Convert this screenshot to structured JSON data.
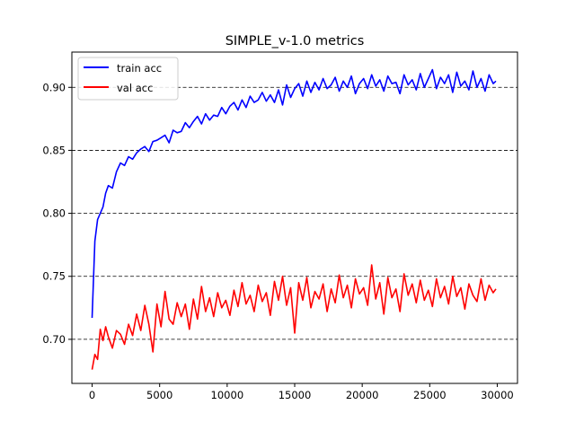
{
  "chart_data": {
    "type": "line",
    "title": "SIMPLE_v-1.0 metrics",
    "xlabel": "",
    "ylabel": "",
    "xlim": [
      -1500,
      31500
    ],
    "ylim": [
      0.665,
      0.928
    ],
    "xticks": [
      0,
      5000,
      10000,
      15000,
      20000,
      25000,
      30000
    ],
    "xtick_labels": [
      "0",
      "5000",
      "10000",
      "15000",
      "20000",
      "25000",
      "30000"
    ],
    "yticks": [
      0.7,
      0.75,
      0.8,
      0.85,
      0.9
    ],
    "ytick_labels": [
      "0.70",
      "0.75",
      "0.80",
      "0.85",
      "0.90"
    ],
    "grid": "horizontal dashed",
    "legend_position": "top-left",
    "colors": {
      "train": "#0000ff",
      "val": "#ff0000",
      "grid": "#000000"
    },
    "series": [
      {
        "name": "train acc",
        "color": "#0000ff",
        "x": [
          0,
          200,
          400,
          600,
          800,
          1000,
          1200,
          1500,
          1800,
          2100,
          2400,
          2700,
          3000,
          3300,
          3600,
          3900,
          4200,
          4500,
          4800,
          5100,
          5400,
          5700,
          6000,
          6300,
          6600,
          6900,
          7200,
          7500,
          7800,
          8100,
          8400,
          8700,
          9000,
          9300,
          9600,
          9900,
          10200,
          10500,
          10800,
          11100,
          11400,
          11700,
          12000,
          12300,
          12600,
          12900,
          13200,
          13500,
          13800,
          14100,
          14400,
          14700,
          15000,
          15300,
          15600,
          15900,
          16200,
          16500,
          16800,
          17100,
          17400,
          17700,
          18000,
          18300,
          18600,
          18900,
          19200,
          19500,
          19800,
          20100,
          20400,
          20700,
          21000,
          21300,
          21600,
          21900,
          22200,
          22500,
          22800,
          23100,
          23400,
          23700,
          24000,
          24300,
          24600,
          24900,
          25200,
          25500,
          25800,
          26100,
          26400,
          26700,
          27000,
          27300,
          27600,
          27900,
          28200,
          28500,
          28800,
          29100,
          29400,
          29700,
          29900
        ],
        "values": [
          0.717,
          0.778,
          0.795,
          0.8,
          0.805,
          0.816,
          0.822,
          0.82,
          0.833,
          0.84,
          0.838,
          0.845,
          0.843,
          0.848,
          0.851,
          0.853,
          0.849,
          0.857,
          0.858,
          0.86,
          0.862,
          0.856,
          0.866,
          0.864,
          0.865,
          0.872,
          0.868,
          0.873,
          0.877,
          0.871,
          0.879,
          0.874,
          0.878,
          0.877,
          0.884,
          0.879,
          0.885,
          0.888,
          0.882,
          0.89,
          0.884,
          0.893,
          0.888,
          0.89,
          0.896,
          0.889,
          0.894,
          0.888,
          0.898,
          0.886,
          0.902,
          0.892,
          0.899,
          0.903,
          0.893,
          0.905,
          0.896,
          0.904,
          0.898,
          0.907,
          0.899,
          0.902,
          0.908,
          0.897,
          0.905,
          0.9,
          0.909,
          0.895,
          0.903,
          0.907,
          0.899,
          0.91,
          0.901,
          0.906,
          0.897,
          0.909,
          0.903,
          0.904,
          0.895,
          0.91,
          0.902,
          0.906,
          0.898,
          0.911,
          0.9,
          0.907,
          0.914,
          0.899,
          0.908,
          0.903,
          0.91,
          0.896,
          0.912,
          0.901,
          0.905,
          0.898,
          0.913,
          0.9,
          0.907,
          0.897,
          0.91,
          0.903,
          0.905
        ]
      },
      {
        "name": "val acc",
        "color": "#ff0000",
        "x": [
          0,
          200,
          400,
          600,
          800,
          1000,
          1200,
          1500,
          1800,
          2100,
          2400,
          2700,
          3000,
          3300,
          3600,
          3900,
          4200,
          4500,
          4800,
          5100,
          5400,
          5700,
          6000,
          6300,
          6600,
          6900,
          7200,
          7500,
          7800,
          8100,
          8400,
          8700,
          9000,
          9300,
          9600,
          9900,
          10200,
          10500,
          10800,
          11100,
          11400,
          11700,
          12000,
          12300,
          12600,
          12900,
          13200,
          13500,
          13800,
          14100,
          14400,
          14700,
          15000,
          15300,
          15600,
          15900,
          16200,
          16500,
          16800,
          17100,
          17400,
          17700,
          18000,
          18300,
          18600,
          18900,
          19200,
          19500,
          19800,
          20100,
          20400,
          20700,
          21000,
          21300,
          21600,
          21900,
          22200,
          22500,
          22800,
          23100,
          23400,
          23700,
          24000,
          24300,
          24600,
          24900,
          25200,
          25500,
          25800,
          26100,
          26400,
          26700,
          27000,
          27300,
          27600,
          27900,
          28200,
          28500,
          28800,
          29100,
          29400,
          29700,
          29900
        ],
        "values": [
          0.676,
          0.688,
          0.684,
          0.708,
          0.699,
          0.71,
          0.702,
          0.693,
          0.707,
          0.704,
          0.696,
          0.712,
          0.703,
          0.72,
          0.707,
          0.727,
          0.712,
          0.69,
          0.728,
          0.71,
          0.738,
          0.716,
          0.712,
          0.729,
          0.718,
          0.728,
          0.708,
          0.732,
          0.716,
          0.742,
          0.722,
          0.733,
          0.718,
          0.737,
          0.725,
          0.731,
          0.719,
          0.739,
          0.726,
          0.745,
          0.728,
          0.735,
          0.722,
          0.743,
          0.73,
          0.737,
          0.719,
          0.746,
          0.731,
          0.75,
          0.727,
          0.741,
          0.705,
          0.745,
          0.731,
          0.749,
          0.725,
          0.738,
          0.732,
          0.744,
          0.722,
          0.74,
          0.729,
          0.751,
          0.733,
          0.743,
          0.725,
          0.748,
          0.736,
          0.741,
          0.727,
          0.759,
          0.732,
          0.745,
          0.72,
          0.749,
          0.733,
          0.74,
          0.722,
          0.752,
          0.735,
          0.744,
          0.729,
          0.747,
          0.731,
          0.739,
          0.726,
          0.748,
          0.733,
          0.742,
          0.728,
          0.75,
          0.734,
          0.741,
          0.724,
          0.744,
          0.735,
          0.73,
          0.748,
          0.731,
          0.743,
          0.737,
          0.74
        ]
      }
    ]
  }
}
